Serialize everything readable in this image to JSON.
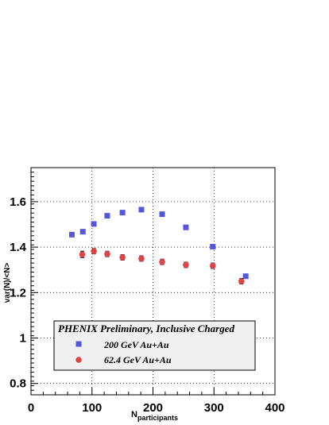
{
  "chart_data": {
    "type": "scatter",
    "xlabel": "N",
    "xlabel_sub": "participants",
    "ylabel": "var(N)/<N>",
    "xlim": [
      0,
      400
    ],
    "ylim": [
      0.75,
      1.75
    ],
    "x_ticks": [
      0,
      100,
      200,
      300,
      400
    ],
    "x_tick_labels": [
      "0",
      "100",
      "200",
      "300",
      "400"
    ],
    "y_ticks": [
      0.8,
      1.0,
      1.2,
      1.4,
      1.6
    ],
    "y_tick_labels": [
      "0.8",
      "1",
      "1.2",
      "1.4",
      "1.6"
    ],
    "grid": "dotted at major ticks",
    "legend": {
      "title": "PHENIX Preliminary, Inclusive Charged",
      "placement": "bottom-center"
    },
    "series": [
      {
        "name": "200 GeV Au+Au",
        "marker": "square",
        "color": "#5555dd",
        "x": [
          67,
          85,
          103,
          125,
          150,
          181,
          215,
          254,
          298,
          352
        ],
        "y": [
          1.455,
          1.468,
          1.502,
          1.538,
          1.552,
          1.565,
          1.545,
          1.487,
          1.402,
          1.272
        ],
        "err": [
          0.005,
          0.005,
          0.005,
          0.005,
          0.005,
          0.005,
          0.005,
          0.005,
          0.005,
          0.005
        ]
      },
      {
        "name": "62.4 GeV Au+Au",
        "marker": "circle",
        "color": "#dd4444",
        "x": [
          84,
          103,
          125,
          150,
          181,
          215,
          254,
          298,
          345
        ],
        "y": [
          1.368,
          1.382,
          1.37,
          1.355,
          1.35,
          1.335,
          1.322,
          1.318,
          1.25
        ],
        "err": [
          0.014,
          0.012,
          0.012,
          0.012,
          0.012,
          0.012,
          0.012,
          0.012,
          0.012
        ]
      }
    ]
  }
}
